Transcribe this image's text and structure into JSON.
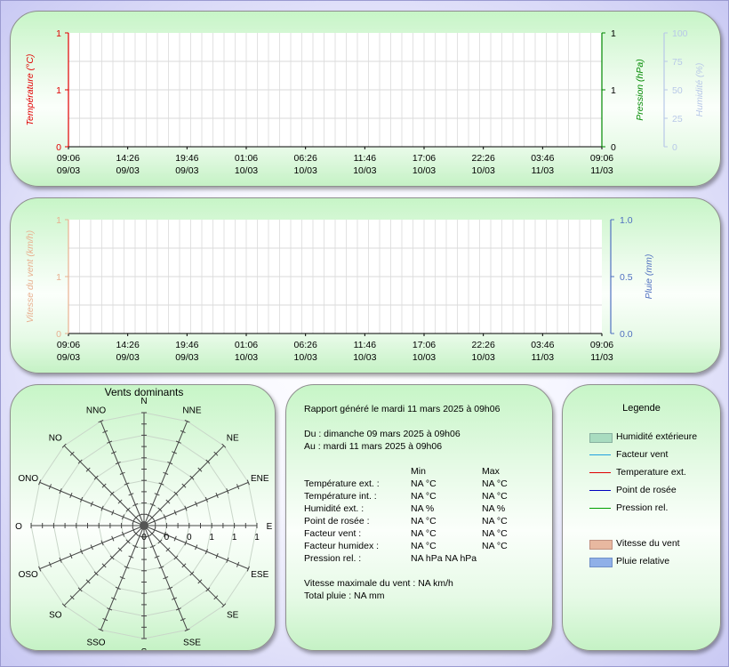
{
  "colors": {
    "temperature": "#e00000",
    "pressure": "#008800",
    "humidity": "#b8c8e8",
    "wind": "#e8b090",
    "rain": "#5070c0"
  },
  "chart_data": [
    {
      "type": "line",
      "ylabel_left": "Température (°C)",
      "ylabel_right": "Pression (hPa)",
      "ylabel_right2": "Humidité (%)",
      "left_ticks": [
        "1",
        "1",
        "0"
      ],
      "right_ticks": [
        "1",
        "1",
        "0"
      ],
      "right2_ticks": [
        "100",
        "75",
        "50",
        "25",
        "0"
      ],
      "x_times": [
        "09:06",
        "14:26",
        "19:46",
        "01:06",
        "06:26",
        "11:46",
        "17:06",
        "22:26",
        "03:46",
        "09:06"
      ],
      "x_dates": [
        "09/03",
        "09/03",
        "09/03",
        "10/03",
        "10/03",
        "10/03",
        "10/03",
        "10/03",
        "11/03",
        "11/03"
      ],
      "series": []
    },
    {
      "type": "line",
      "ylabel_left": "Vitesse du vent (km/h)",
      "ylabel_right": "Pluie (mm)",
      "left_ticks": [
        "1",
        "1",
        "0"
      ],
      "right_ticks": [
        "1.0",
        "0.5",
        "0.0"
      ],
      "x_times": [
        "09:06",
        "14:26",
        "19:46",
        "01:06",
        "06:26",
        "11:46",
        "17:06",
        "22:26",
        "03:46",
        "09:06"
      ],
      "x_dates": [
        "09/03",
        "09/03",
        "09/03",
        "10/03",
        "10/03",
        "10/03",
        "10/03",
        "10/03",
        "11/03",
        "11/03"
      ],
      "series": []
    }
  ],
  "windrose": {
    "title": "Vents dominants",
    "directions": [
      "N",
      "NNE",
      "NE",
      "ENE",
      "E",
      "ESE",
      "SE",
      "SSE",
      "S",
      "SSO",
      "SO",
      "OSO",
      "O",
      "ONO",
      "NO",
      "NNO"
    ],
    "scale_labels": [
      "0",
      "0",
      "0",
      "1",
      "1",
      "1"
    ]
  },
  "report": {
    "generated": "Rapport généré le mardi 11 mars 2025 à 09h06",
    "from": "Du : dimanche 09 mars 2025 à 09h06",
    "to": "Au : mardi 11 mars 2025 à 09h06",
    "col_min": "Min",
    "col_max": "Max",
    "rows": [
      {
        "label": "Température ext. :",
        "min": "NA °C",
        "max": "NA °C"
      },
      {
        "label": "Température int. :",
        "min": "NA °C",
        "max": "NA °C"
      },
      {
        "label": "Humidité ext. :",
        "min": "NA %",
        "max": "NA %"
      },
      {
        "label": "Point de rosée :",
        "min": "NA °C",
        "max": "NA °C"
      },
      {
        "label": "Facteur vent :",
        "min": "NA °C",
        "max": "NA °C"
      },
      {
        "label": "Facteur humidex :",
        "min": "NA °C",
        "max": "NA °C"
      }
    ],
    "pressure_label": "Pression rel. :",
    "pressure_values": "NA hPa  NA hPa",
    "max_wind": "Vitesse maximale du vent : NA km/h",
    "total_rain": "Total pluie : NA mm"
  },
  "legend": {
    "title": "Legende",
    "items": [
      {
        "label": "Humidité extérieure",
        "kind": "swatch",
        "color": "#a9dcc0",
        "border": "#88b0a0"
      },
      {
        "label": "Facteur vent",
        "kind": "line",
        "color": "#20a0e0"
      },
      {
        "label": "Temperature ext.",
        "kind": "line",
        "color": "#e00000"
      },
      {
        "label": "Point de rosée",
        "kind": "line",
        "color": "#0000c0"
      },
      {
        "label": "Pression rel.",
        "kind": "line",
        "color": "#00a000"
      },
      {
        "label": "Vitesse du vent",
        "kind": "swatch",
        "color": "#e8b8a0",
        "border": "#c09080"
      },
      {
        "label": "Pluie relative",
        "kind": "swatch",
        "color": "#90b0e8",
        "border": "#7090c8"
      }
    ]
  }
}
